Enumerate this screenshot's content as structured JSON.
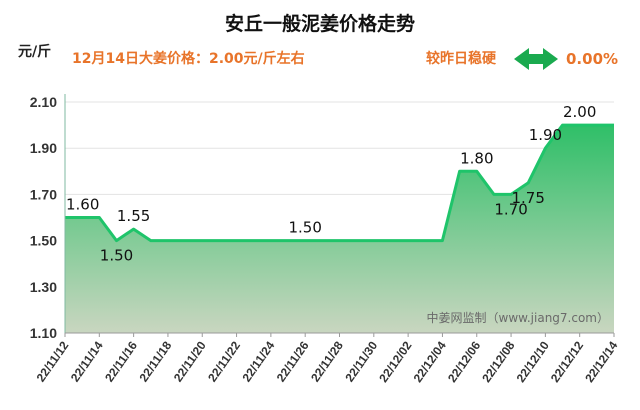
{
  "header": {
    "title": "安丘一般泥姜价格走势",
    "unit": "元/斤",
    "subtitle": "12月14日大姜价格：2.00元/斤左右",
    "trend_text": "较昨日稳硬",
    "change": "0.00%",
    "watermark": "中姜网监制（www.jiang7.com）"
  },
  "colors": {
    "line": "#1fc46a",
    "fill_top": "#2fbf68",
    "fill_bottom": "#c9d6c0",
    "accent": "#e8742a",
    "arrow": "#1aaa4f"
  },
  "icons": {
    "trend": "double-arrow-icon"
  },
  "chart_data": {
    "type": "area",
    "ylim": [
      1.1,
      2.1
    ],
    "yticks": [
      "1.10",
      "1.30",
      "1.50",
      "1.70",
      "1.90",
      "2.10"
    ],
    "xlim": [
      "22/11/12",
      "22/12/14"
    ],
    "xticks": [
      "22/11/12",
      "22/11/14",
      "22/11/16",
      "22/11/18",
      "22/11/20",
      "22/11/22",
      "22/11/24",
      "22/11/26",
      "22/11/28",
      "22/11/30",
      "22/12/02",
      "22/12/04",
      "22/12/06",
      "22/12/08",
      "22/12/10",
      "22/12/12",
      "22/12/14"
    ],
    "x": [
      "22/11/12",
      "22/11/14",
      "22/11/15",
      "22/11/16",
      "22/11/17",
      "22/12/04",
      "22/12/05",
      "22/12/06",
      "22/12/07",
      "22/12/08",
      "22/12/09",
      "22/12/10",
      "22/12/11",
      "22/12/12",
      "22/12/14"
    ],
    "values": [
      1.6,
      1.6,
      1.5,
      1.55,
      1.5,
      1.5,
      1.8,
      1.8,
      1.7,
      1.7,
      1.75,
      1.9,
      2.0,
      2.0,
      2.0
    ],
    "data_labels": [
      {
        "x": "22/11/12",
        "text": "1.60",
        "pos": "above"
      },
      {
        "x": "22/11/15",
        "text": "1.50",
        "pos": "below"
      },
      {
        "x": "22/11/16",
        "text": "1.55",
        "pos": "above"
      },
      {
        "x": "22/11/26",
        "text": "1.50",
        "pos": "above"
      },
      {
        "x": "22/12/06",
        "text": "1.80",
        "pos": "above"
      },
      {
        "x": "22/12/08",
        "text": "1.70",
        "pos": "below"
      },
      {
        "x": "22/12/09",
        "text": "1.75",
        "pos": "below"
      },
      {
        "x": "22/12/10",
        "text": "1.90",
        "pos": "above"
      },
      {
        "x": "22/12/12",
        "text": "2.00",
        "pos": "above"
      }
    ]
  }
}
